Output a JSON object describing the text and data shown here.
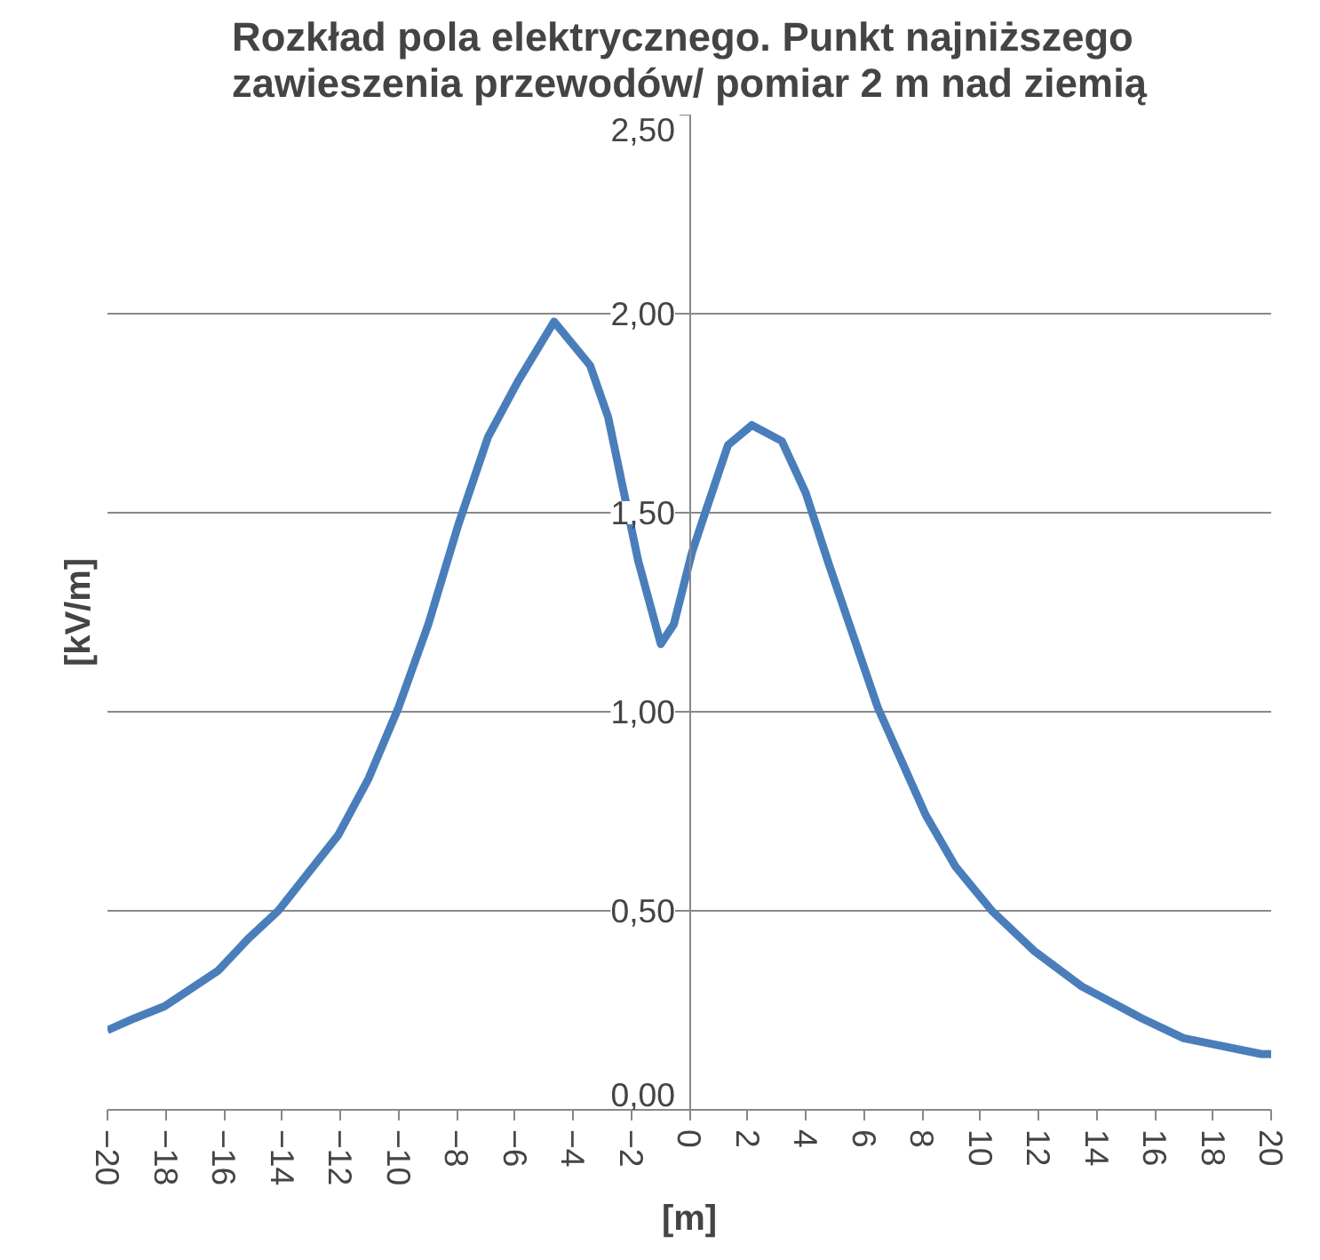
{
  "chart_data": {
    "type": "line",
    "title": "Rozkład pola elektrycznego. Punkt najniższego\nzawieszenia przewodów/ pomiar 2 m nad ziemią",
    "xlabel": "[m]",
    "ylabel": "[kV/m]",
    "x": [
      -20,
      -19.07,
      -18.04,
      -16.19,
      -15.16,
      -14.13,
      -12.07,
      -11.04,
      -10.0,
      -8.97,
      -7.94,
      -6.92,
      -5.89,
      -4.65,
      -3.41,
      -2.79,
      -1.76,
      -0.98,
      -0.53,
      0.09,
      0.5,
      1.33,
      2.15,
      3.18,
      4.0,
      4.8,
      6.48,
      8.13,
      9.16,
      10.4,
      11.84,
      13.49,
      15.55,
      16.99,
      19.67,
      20
    ],
    "series": [
      {
        "color": "#4a7ebb",
        "values": [
          0.2,
          0.23,
          0.26,
          0.35,
          0.43,
          0.5,
          0.69,
          0.83,
          1.01,
          1.22,
          1.47,
          1.69,
          1.83,
          1.98,
          1.87,
          1.74,
          1.38,
          1.17,
          1.22,
          1.4,
          1.49,
          1.67,
          1.72,
          1.68,
          1.55,
          1.37,
          1.01,
          0.74,
          0.61,
          0.5,
          0.4,
          0.31,
          0.23,
          0.18,
          0.14,
          0.14
        ]
      }
    ],
    "xlim": [
      -20,
      20
    ],
    "ylim": [
      0,
      2.5
    ],
    "xticks": [
      -20,
      -18,
      -16,
      -14,
      -12,
      -10,
      -8,
      -6,
      -4,
      -2,
      0,
      2,
      4,
      6,
      8,
      10,
      12,
      14,
      16,
      18,
      20
    ],
    "yticks": [
      {
        "value": 0,
        "label": "0,00"
      },
      {
        "value": 0.5,
        "label": "0,50"
      },
      {
        "value": 1,
        "label": "1,00"
      },
      {
        "value": 1.5,
        "label": "1,50"
      },
      {
        "value": 2,
        "label": "2,00"
      },
      {
        "value": 2.5,
        "label": "2,50"
      }
    ],
    "grid": "y",
    "marker": "none",
    "line_style": "solid"
  }
}
